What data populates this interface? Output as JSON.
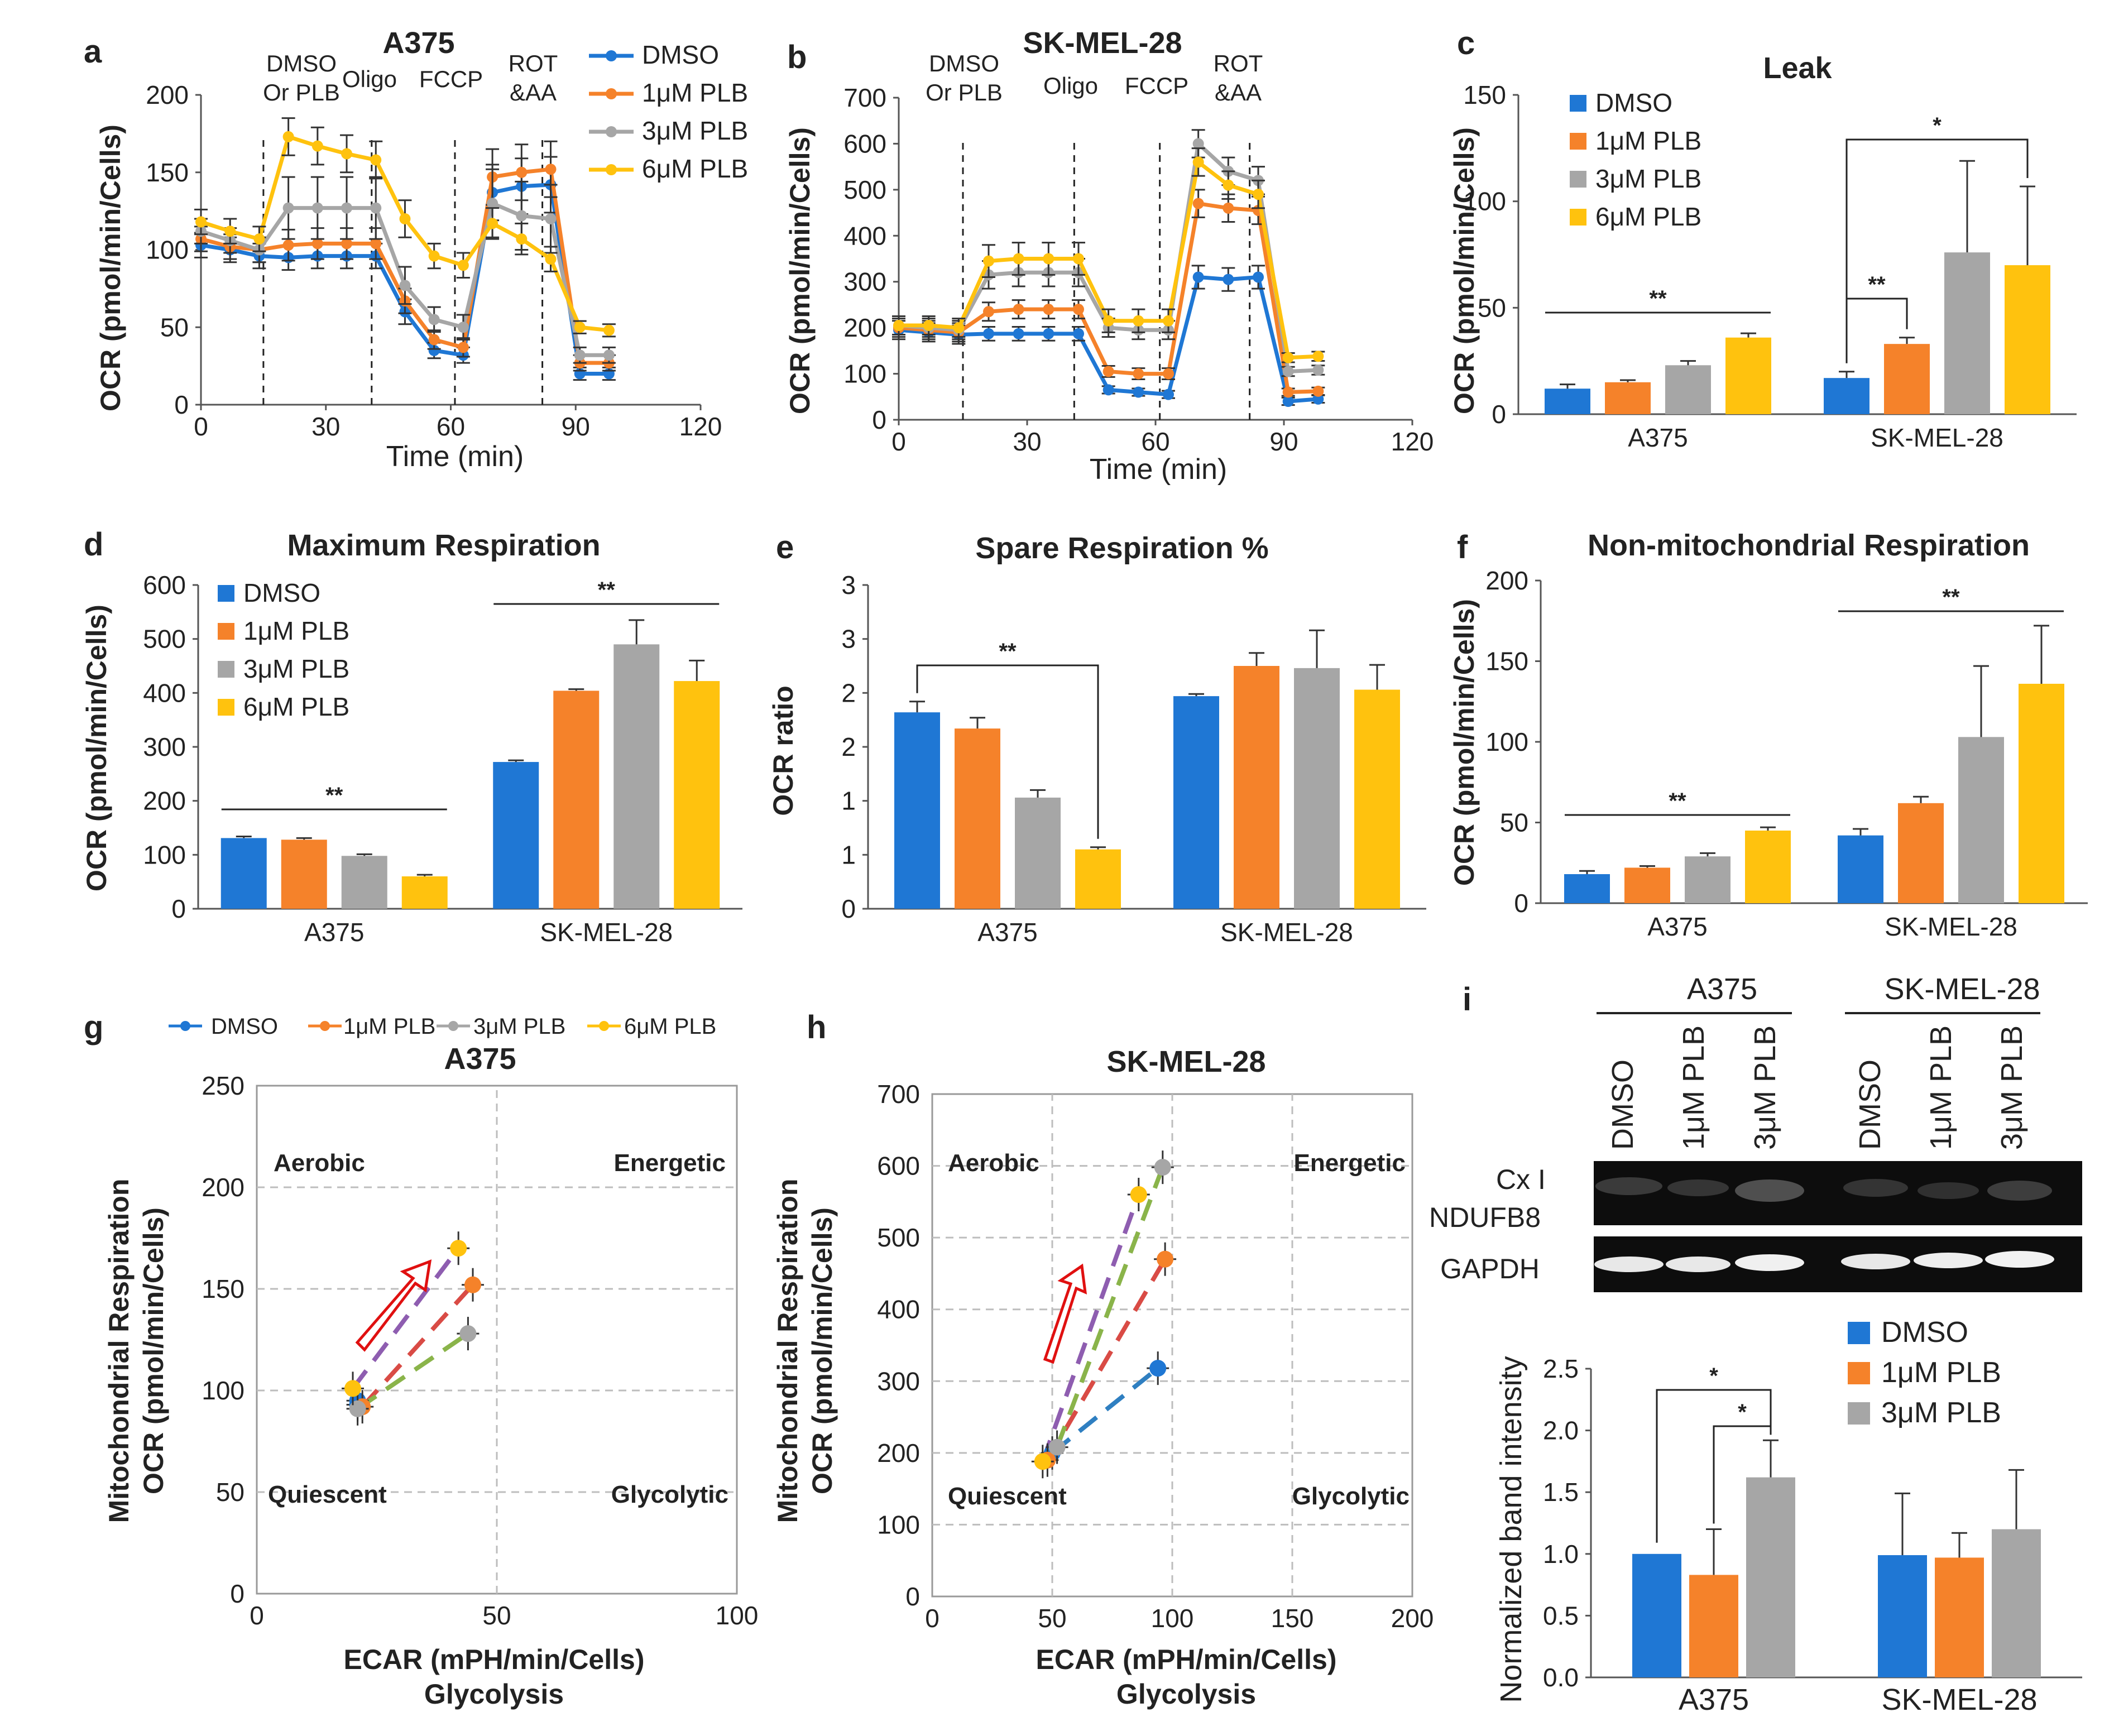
{
  "colors": {
    "DMSO": "#1f77d4",
    "1uM": "#f5822a",
    "3uM": "#a6a6a6",
    "6uM": "#ffc20e",
    "purple": "#8e5db0",
    "red": "#d94b45",
    "green": "#8ab44a",
    "blue": "#2f7fc1"
  },
  "panels": {
    "a": "a",
    "b": "b",
    "c": "c",
    "d": "d",
    "e": "e",
    "f": "f",
    "g": "g",
    "h": "h",
    "i": "i"
  },
  "common": {
    "time_label": "Time (min)",
    "ocr_label": "OCR (pmol/min/Cells)",
    "ocr_ratio_label": "OCR ratio",
    "mito_label": "Mitochondrial Respiration",
    "ecar_label": "ECAR (mPH/min/Cells)",
    "glycolysis_label": "Glycolysis",
    "quad_aerobic": "Aerobic",
    "quad_energetic": "Energetic",
    "quad_quiescent": "Quiescent",
    "quad_glycolytic": "Glycolytic",
    "band_ylabel": "Normalized band intensity",
    "cx1_a": "Cx I",
    "cx1_b": "NDUFB8",
    "gapdh": "GAPDH"
  },
  "injections": {
    "dmso_a": "DMSO",
    "dmso_b": "Or PLB",
    "oligo": "Oligo",
    "fccp": "FCCP",
    "rot_a": "ROT",
    "rot_b": "&AA"
  },
  "legend": {
    "dmso": "DMSO",
    "plb1": "1μM PLB",
    "plb3": "3μM PLB",
    "plb6": "6μM PLB"
  },
  "chart_data": [
    {
      "id": "a",
      "type": "line",
      "title": "A375",
      "xlabel": "Time (min)",
      "ylabel": "OCR (pmol/min/Cells)",
      "xlim": [
        0,
        120
      ],
      "ylim": [
        0,
        200
      ],
      "xticks": [
        0,
        30,
        60,
        90,
        120
      ],
      "yticks": [
        0,
        50,
        100,
        150,
        200
      ],
      "x": [
        0,
        7,
        14,
        21,
        28,
        35,
        42,
        49,
        56,
        63,
        70,
        77,
        84,
        91,
        98
      ],
      "series": [
        {
          "name": "DMSO",
          "values": [
            103,
            100,
            96,
            95,
            96,
            96,
            96,
            60,
            35,
            32,
            137,
            141,
            142,
            20,
            20
          ],
          "errors": [
            8,
            8,
            8,
            8,
            8,
            8,
            8,
            8,
            5,
            5,
            18,
            18,
            18,
            4,
            4
          ]
        },
        {
          "name": "1μM PLB",
          "values": [
            107,
            102,
            100,
            103,
            104,
            104,
            104,
            67,
            42,
            37,
            147,
            150,
            152,
            27,
            27
          ],
          "errors": [
            8,
            8,
            8,
            10,
            10,
            10,
            10,
            8,
            6,
            6,
            18,
            18,
            18,
            5,
            5
          ]
        },
        {
          "name": "3μM PLB",
          "values": [
            112,
            106,
            100,
            127,
            127,
            127,
            127,
            77,
            55,
            50,
            130,
            122,
            120,
            32,
            32
          ],
          "errors": [
            8,
            8,
            8,
            20,
            20,
            20,
            20,
            12,
            8,
            8,
            22,
            22,
            22,
            5,
            5
          ]
        },
        {
          "name": "6μM PLB",
          "values": [
            118,
            112,
            107,
            173,
            167,
            162,
            158,
            120,
            96,
            90,
            117,
            107,
            94,
            50,
            48
          ],
          "errors": [
            8,
            8,
            8,
            12,
            12,
            12,
            12,
            12,
            8,
            8,
            10,
            10,
            8,
            4,
            4
          ]
        }
      ],
      "injections": [
        15,
        41,
        61,
        82
      ]
    },
    {
      "id": "b",
      "type": "line",
      "title": "SK-MEL-28",
      "xlabel": "Time (min)",
      "ylabel": "OCR (pmol/min/Cells)",
      "xlim": [
        0,
        120
      ],
      "ylim": [
        0,
        700
      ],
      "xticks": [
        0,
        30,
        60,
        90,
        120
      ],
      "yticks": [
        0,
        100,
        200,
        300,
        400,
        500,
        600,
        700
      ],
      "x": [
        0,
        7,
        14,
        21,
        28,
        35,
        42,
        49,
        56,
        63,
        70,
        77,
        84,
        91,
        98
      ],
      "series": [
        {
          "name": "DMSO",
          "values": [
            195,
            190,
            185,
            187,
            187,
            187,
            187,
            65,
            60,
            55,
            310,
            305,
            310,
            40,
            45
          ],
          "errors": [
            20,
            20,
            20,
            15,
            15,
            15,
            15,
            8,
            8,
            8,
            25,
            25,
            25,
            8,
            8
          ]
        },
        {
          "name": "1μM PLB",
          "values": [
            200,
            195,
            190,
            235,
            240,
            240,
            240,
            105,
            100,
            100,
            470,
            460,
            455,
            60,
            62
          ],
          "errors": [
            20,
            20,
            20,
            20,
            20,
            20,
            20,
            12,
            12,
            12,
            30,
            30,
            30,
            8,
            8
          ]
        },
        {
          "name": "3μM PLB",
          "values": [
            205,
            200,
            195,
            315,
            320,
            320,
            320,
            200,
            195,
            195,
            600,
            540,
            520,
            105,
            108
          ],
          "errors": [
            20,
            20,
            20,
            30,
            30,
            30,
            30,
            20,
            20,
            20,
            30,
            30,
            30,
            10,
            10
          ]
        },
        {
          "name": "6μM PLB",
          "values": [
            205,
            205,
            200,
            345,
            350,
            350,
            350,
            215,
            215,
            215,
            560,
            510,
            490,
            135,
            138
          ],
          "errors": [
            20,
            20,
            20,
            35,
            35,
            35,
            35,
            25,
            25,
            25,
            30,
            30,
            30,
            10,
            10
          ]
        }
      ],
      "injections": [
        15,
        41,
        61,
        82
      ]
    },
    {
      "id": "c",
      "type": "bar",
      "title": "Leak",
      "ylabel": "OCR (pmol/min/Cells)",
      "ylim": [
        0,
        150
      ],
      "yticks": [
        0,
        50,
        100,
        150
      ],
      "categories": [
        "A375",
        "SK-MEL-28"
      ],
      "series": [
        {
          "name": "DMSO",
          "values": [
            12,
            17
          ],
          "errors": [
            2,
            3
          ]
        },
        {
          "name": "1μM PLB",
          "values": [
            15,
            33
          ],
          "errors": [
            1,
            3
          ]
        },
        {
          "name": "3μM PLB",
          "values": [
            23,
            76
          ],
          "errors": [
            2,
            43
          ]
        },
        {
          "name": "6μM PLB",
          "values": [
            36,
            70
          ],
          "errors": [
            2,
            37
          ]
        }
      ],
      "significance": [
        "**",
        "**",
        "*"
      ]
    },
    {
      "id": "d",
      "type": "bar",
      "title": "Maximum Respiration",
      "ylabel": "OCR (pmol/min/Cells)",
      "ylim": [
        0,
        600
      ],
      "yticks": [
        0,
        100,
        200,
        300,
        400,
        500,
        600
      ],
      "categories": [
        "A375",
        "SK-MEL-28"
      ],
      "series": [
        {
          "name": "DMSO",
          "values": [
            131,
            272
          ],
          "errors": [
            3,
            3
          ]
        },
        {
          "name": "1μM PLB",
          "values": [
            128,
            404
          ],
          "errors": [
            3,
            3
          ]
        },
        {
          "name": "3μM PLB",
          "values": [
            98,
            490
          ],
          "errors": [
            3,
            45
          ]
        },
        {
          "name": "6μM PLB",
          "values": [
            60,
            422
          ],
          "errors": [
            3,
            38
          ]
        }
      ],
      "significance": [
        "**",
        "**"
      ]
    },
    {
      "id": "e",
      "type": "bar",
      "title": "Spare Respiration %",
      "ylabel": "OCR ratio",
      "ylim": [
        0,
        3
      ],
      "yticks": [
        0,
        0.5,
        1,
        1.5,
        2,
        2.5,
        3
      ],
      "ytick_labels": [
        "0",
        "1",
        "1",
        "2",
        "2",
        "3",
        "3"
      ],
      "categories": [
        "A375",
        "SK-MEL-28"
      ],
      "series": [
        {
          "name": "DMSO",
          "values": [
            1.82,
            1.97
          ],
          "errors": [
            0.1,
            0.02
          ]
        },
        {
          "name": "1μM PLB",
          "values": [
            1.67,
            2.25
          ],
          "errors": [
            0.1,
            0.12
          ]
        },
        {
          "name": "3μM PLB",
          "values": [
            1.03,
            2.23
          ],
          "errors": [
            0.07,
            0.35
          ]
        },
        {
          "name": "6μM PLB",
          "values": [
            0.55,
            2.03
          ],
          "errors": [
            0.02,
            0.23
          ]
        }
      ],
      "significance": [
        "**"
      ]
    },
    {
      "id": "f",
      "type": "bar",
      "title": "Non-mitochondrial Respiration",
      "ylabel": "OCR (pmol/min/Cells)",
      "ylim": [
        0,
        200
      ],
      "yticks": [
        0,
        50,
        100,
        150,
        200
      ],
      "categories": [
        "A375",
        "SK-MEL-28"
      ],
      "series": [
        {
          "name": "DMSO",
          "values": [
            18,
            42
          ],
          "errors": [
            2,
            4
          ]
        },
        {
          "name": "1μM PLB",
          "values": [
            22,
            62
          ],
          "errors": [
            1,
            4
          ]
        },
        {
          "name": "3μM PLB",
          "values": [
            29,
            103
          ],
          "errors": [
            2,
            44
          ]
        },
        {
          "name": "6μM PLB",
          "values": [
            45,
            136
          ],
          "errors": [
            2,
            36
          ]
        }
      ],
      "significance": [
        "**",
        "**"
      ]
    },
    {
      "id": "g",
      "type": "scatter",
      "title": "A375",
      "xlabel": "ECAR (mPH/min/Cells)",
      "ylabel": "OCR (pmol/min/Cells)",
      "xlim": [
        0,
        100
      ],
      "ylim": [
        0,
        250
      ],
      "xticks": [
        0,
        50,
        100
      ],
      "yticks": [
        0,
        50,
        100,
        150,
        200,
        250
      ],
      "points": [
        {
          "name": "DMSO",
          "base": [
            21,
            95
          ],
          "stressed": [
            21,
            93
          ]
        },
        {
          "name": "1μM PLB",
          "base": [
            22,
            92
          ],
          "stressed": [
            45,
            152
          ]
        },
        {
          "name": "3μM PLB",
          "base": [
            21,
            91
          ],
          "stressed": [
            44,
            128
          ]
        },
        {
          "name": "6μM PLB",
          "base": [
            20,
            101
          ],
          "stressed": [
            42,
            170
          ]
        }
      ]
    },
    {
      "id": "h",
      "type": "scatter",
      "title": "SK-MEL-28",
      "xlabel": "ECAR (mPH/min/Cells)",
      "ylabel": "OCR (pmol/min/Cells)",
      "xlim": [
        0,
        200
      ],
      "ylim": [
        0,
        700
      ],
      "xticks": [
        0,
        50,
        100,
        150,
        200
      ],
      "yticks": [
        0,
        100,
        200,
        300,
        400,
        500,
        600,
        700
      ],
      "points": [
        {
          "name": "DMSO",
          "base": [
            50,
            200
          ],
          "stressed": [
            94,
            318
          ]
        },
        {
          "name": "1μM PLB",
          "base": [
            48,
            190
          ],
          "stressed": [
            97,
            470
          ]
        },
        {
          "name": "3μM PLB",
          "base": [
            52,
            208
          ],
          "stressed": [
            96,
            598
          ]
        },
        {
          "name": "6μM PLB",
          "base": [
            46,
            188
          ],
          "stressed": [
            86,
            560
          ]
        }
      ]
    },
    {
      "id": "i",
      "type": "bar",
      "ylabel": "Normalized band intensity",
      "ylim": [
        0,
        2.5
      ],
      "yticks": [
        0,
        0.5,
        1,
        1.5,
        2,
        2.5
      ],
      "ytick_labels": [
        "0.0",
        "0.5",
        "1.0",
        "1.5",
        "2.0",
        "2.5"
      ],
      "categories": [
        "A375",
        "SK-MEL-28"
      ],
      "series": [
        {
          "name": "DMSO",
          "values": [
            1.0,
            0.99
          ],
          "errors": [
            0,
            0.5
          ]
        },
        {
          "name": "1μM PLB",
          "values": [
            0.83,
            0.97
          ],
          "errors": [
            0.37,
            0.2
          ]
        },
        {
          "name": "3μM PLB",
          "values": [
            1.62,
            1.2
          ],
          "errors": [
            0.3,
            0.48
          ]
        }
      ],
      "legend": [
        "DMSO",
        "1μM PLB",
        "3μM PLB"
      ],
      "lanes": [
        "DMSO",
        "1μM PLB",
        "3μM PLB",
        "DMSO",
        "1μM PLB",
        "3μM PLB"
      ],
      "significance": [
        "*",
        "*"
      ]
    }
  ]
}
